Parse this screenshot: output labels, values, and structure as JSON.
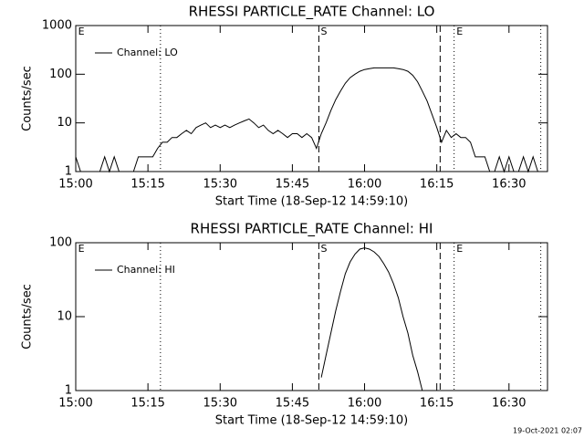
{
  "chart_data": [
    {
      "type": "line",
      "title": "RHESSI PARTICLE_RATE Channel: LO",
      "xlabel": "Start Time (18-Sep-12 14:59:10)",
      "ylabel": "Counts/sec",
      "log_y": true,
      "legend": "upper left",
      "x": [
        0,
        1,
        2,
        3,
        4,
        5,
        6,
        7,
        8,
        9,
        10,
        11,
        12,
        13,
        14,
        15,
        16,
        17,
        18,
        19,
        20,
        21,
        22,
        23,
        24,
        25,
        26,
        27,
        28,
        29,
        30,
        31,
        32,
        33,
        34,
        35,
        36,
        37,
        38,
        39,
        40,
        41,
        42,
        43,
        44,
        45,
        46,
        47,
        48,
        49,
        50,
        51,
        52,
        53,
        54,
        55,
        56,
        57,
        58,
        59,
        60,
        61,
        62,
        63,
        64,
        65,
        66,
        67,
        68,
        69,
        70,
        71,
        72,
        73,
        74,
        75,
        76,
        77,
        78,
        79,
        80,
        81,
        82,
        83,
        84,
        85,
        86,
        87,
        88,
        89,
        90,
        91,
        92,
        93,
        94,
        95,
        96,
        97,
        98
      ],
      "series": [
        {
          "name": "Channel: LO",
          "color": "#000000",
          "values": [
            2,
            1,
            1,
            1,
            1,
            1,
            2,
            1,
            2,
            1,
            1,
            1,
            1,
            2,
            2,
            2,
            2,
            3,
            4,
            4,
            5,
            5,
            6,
            7,
            6,
            8,
            9,
            10,
            8,
            9,
            8,
            9,
            8,
            9,
            10,
            11,
            12,
            10,
            8,
            9,
            7,
            6,
            7,
            6,
            5,
            6,
            6,
            5,
            6,
            5,
            3,
            6,
            10,
            18,
            30,
            45,
            65,
            85,
            100,
            115,
            125,
            130,
            135,
            135,
            135,
            135,
            135,
            130,
            125,
            115,
            95,
            70,
            45,
            28,
            15,
            8,
            4,
            7,
            5,
            6,
            5,
            5,
            4,
            2,
            2,
            2,
            1,
            1,
            2,
            1,
            2,
            1,
            1,
            2,
            1,
            2,
            1,
            1,
            1
          ]
        }
      ],
      "xlim": [
        0,
        98
      ],
      "ylim": [
        1,
        1000
      ],
      "xticks": [
        {
          "value": 0,
          "label": "15:00"
        },
        {
          "value": 15,
          "label": "15:15"
        },
        {
          "value": 30,
          "label": "15:30"
        },
        {
          "value": 45,
          "label": "15:45"
        },
        {
          "value": 60,
          "label": "16:00"
        },
        {
          "value": 75,
          "label": "16:15"
        },
        {
          "value": 90,
          "label": "16:30"
        }
      ],
      "yticks": [
        1,
        10,
        100,
        1000
      ],
      "vlines": [
        {
          "x": 17.6,
          "style": "dotted"
        },
        {
          "x": 50.5,
          "style": "dashed"
        },
        {
          "x": 75.7,
          "style": "dashed"
        },
        {
          "x": 78.6,
          "style": "dotted"
        },
        {
          "x": 96.6,
          "style": "dotted"
        }
      ],
      "flags": [
        {
          "x": 0.3,
          "label": "E"
        },
        {
          "x": 50.7,
          "label": "S"
        },
        {
          "x": 78.9,
          "label": "E"
        }
      ]
    },
    {
      "type": "line",
      "title": "RHESSI PARTICLE_RATE Channel: HI",
      "xlabel": "Start Time (18-Sep-12 14:59:10)",
      "ylabel": "Counts/sec",
      "log_y": true,
      "legend": "upper left",
      "x": [
        51,
        52,
        53,
        54,
        55,
        56,
        57,
        58,
        59,
        60,
        61,
        62,
        63,
        64,
        65,
        66,
        67,
        68,
        69,
        70,
        71,
        72
      ],
      "series": [
        {
          "name": "Channel: HI",
          "color": "#000000",
          "values": [
            1.5,
            3,
            6,
            12,
            22,
            38,
            55,
            70,
            82,
            85,
            82,
            75,
            65,
            52,
            40,
            28,
            18,
            10,
            6,
            3,
            1.8,
            1
          ]
        }
      ],
      "xlim": [
        0,
        98
      ],
      "ylim": [
        1,
        100
      ],
      "xticks": [
        {
          "value": 0,
          "label": "15:00"
        },
        {
          "value": 15,
          "label": "15:15"
        },
        {
          "value": 30,
          "label": "15:30"
        },
        {
          "value": 45,
          "label": "15:45"
        },
        {
          "value": 60,
          "label": "16:00"
        },
        {
          "value": 75,
          "label": "16:15"
        },
        {
          "value": 90,
          "label": "16:30"
        }
      ],
      "yticks": [
        1,
        10,
        100
      ],
      "vlines": [
        {
          "x": 17.6,
          "style": "dotted"
        },
        {
          "x": 50.5,
          "style": "dashed"
        },
        {
          "x": 75.7,
          "style": "dashed"
        },
        {
          "x": 78.6,
          "style": "dotted"
        },
        {
          "x": 96.6,
          "style": "dotted"
        }
      ],
      "flags": [
        {
          "x": 0.3,
          "label": "E"
        },
        {
          "x": 50.7,
          "label": "S"
        },
        {
          "x": 78.9,
          "label": "E"
        }
      ]
    }
  ],
  "footer": "19-Oct-2021 02:07"
}
